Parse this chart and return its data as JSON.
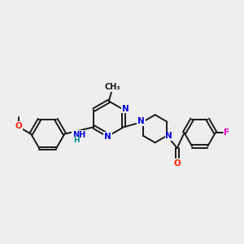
{
  "bg_color": "#eeeeee",
  "bond_color": "#1a1a1a",
  "N_color": "#0000dd",
  "O_color": "#ff2200",
  "F_color": "#dd00bb",
  "H_color": "#008888",
  "line_width": 1.4,
  "font_size": 7.5,
  "xlim": [
    0,
    10
  ],
  "ylim": [
    1.5,
    8.5
  ]
}
